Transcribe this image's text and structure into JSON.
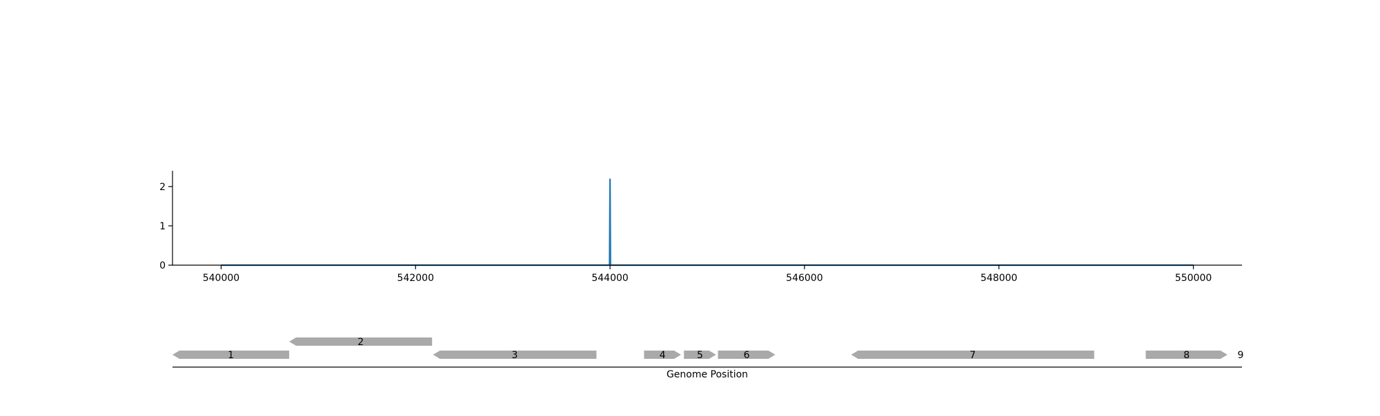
{
  "chart_data": {
    "type": "line",
    "title": "",
    "xlabel": "Genome Position",
    "ylabel": "",
    "xlim": [
      539500,
      550500
    ],
    "ylim": [
      0,
      2.4
    ],
    "x_ticks": [
      540000,
      542000,
      544000,
      546000,
      548000,
      550000
    ],
    "x_tick_labels": [
      "540000",
      "542000",
      "544000",
      "546000",
      "548000",
      "550000"
    ],
    "y_ticks": [
      0,
      1,
      2
    ],
    "y_tick_labels": [
      "0",
      "1",
      "2"
    ],
    "grid": false,
    "legend": "none",
    "series": [
      {
        "color": "#1f77b4",
        "x": [
          540000,
          543995,
          544000,
          544005,
          550000
        ],
        "y": [
          0,
          0,
          2.2,
          0,
          0
        ]
      }
    ],
    "genes": [
      {
        "label": "1",
        "start": 539500,
        "end": 540700,
        "strand": "-",
        "row": 0
      },
      {
        "label": "2",
        "start": 540700,
        "end": 542170,
        "strand": "-",
        "row": 1
      },
      {
        "label": "3",
        "start": 542180,
        "end": 543860,
        "strand": "-",
        "row": 0
      },
      {
        "label": "4",
        "start": 544350,
        "end": 544730,
        "strand": "+",
        "row": 0
      },
      {
        "label": "5",
        "start": 544760,
        "end": 545090,
        "strand": "+",
        "row": 0
      },
      {
        "label": "6",
        "start": 545110,
        "end": 545700,
        "strand": "+",
        "row": 0
      },
      {
        "label": "7",
        "start": 546480,
        "end": 548980,
        "strand": "-",
        "row": 0
      },
      {
        "label": "8",
        "start": 549510,
        "end": 550350,
        "strand": "+",
        "row": 0
      },
      {
        "label": "9",
        "start": 550350,
        "end": 550500,
        "strand": "+",
        "row": 0
      }
    ],
    "gene_color": "#a9a9a9"
  }
}
